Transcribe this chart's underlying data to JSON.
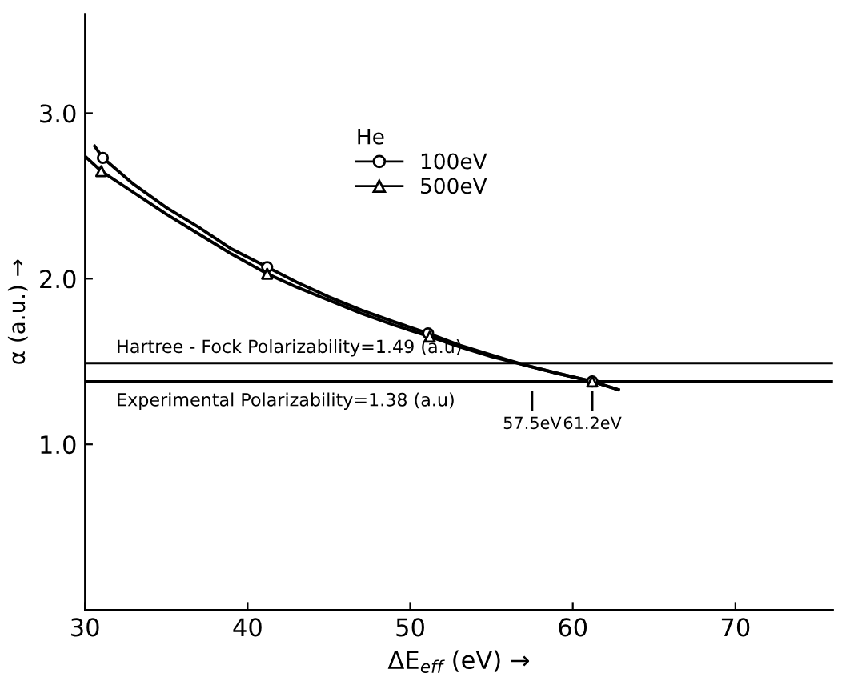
{
  "chart_data": {
    "type": "line",
    "xlabel": "ΔE$_{eff}$ (eV) →",
    "ylabel": "α (a.u.) →",
    "legend_title": "He",
    "xlim": [
      30,
      76
    ],
    "ylim": [
      0,
      3.6
    ],
    "xticks": [
      30,
      40,
      50,
      60,
      70
    ],
    "yticks": [
      {
        "value": 1,
        "label": "1.0"
      },
      {
        "value": 2,
        "label": "2.0"
      },
      {
        "value": 3,
        "label": "3.0"
      }
    ],
    "grid": false,
    "legend": "top",
    "series": [
      {
        "type": "line",
        "marker": "none",
        "color": "#000000",
        "x": [
          30.6,
          31.1,
          33,
          35,
          37,
          39,
          41.2,
          43,
          45,
          47,
          49,
          51.1,
          53,
          55,
          57,
          59,
          61.2,
          62.8
        ],
        "values": [
          2.8,
          2.73,
          2.57,
          2.43,
          2.31,
          2.18,
          2.07,
          1.98,
          1.89,
          1.81,
          1.74,
          1.67,
          1.6,
          1.54,
          1.48,
          1.43,
          1.38,
          1.33
        ]
      },
      {
        "marker": "none",
        "color": "#000000",
        "x": [
          30,
          31,
          33,
          35,
          37,
          39,
          41.2,
          43,
          45,
          47,
          49,
          51.2,
          53,
          55,
          57,
          59,
          61.2,
          62.8
        ],
        "values": [
          2.74,
          2.65,
          2.52,
          2.39,
          2.27,
          2.15,
          2.03,
          1.95,
          1.87,
          1.79,
          1.72,
          1.65,
          1.59,
          1.53,
          1.48,
          1.43,
          1.38,
          1.33
        ]
      },
      {
        "type": "scatter",
        "name": "100eV",
        "marker": "circle",
        "color": "#000000",
        "x": [
          31.1,
          41.2,
          51.1,
          61.2
        ],
        "values": [
          2.73,
          2.07,
          1.67,
          1.38
        ]
      },
      {
        "type": "scatter",
        "name": "500eV",
        "marker": "triangle",
        "color": "#000000",
        "x": [
          31,
          41.2,
          51.2,
          61.2
        ],
        "values": [
          2.65,
          2.03,
          1.65,
          1.38
        ]
      }
    ],
    "ref_lines": [
      {
        "axis": "y",
        "value": 1.49,
        "label": "Hartree - Fock Polarizability=1.49 (a.u)",
        "color": "#000000"
      },
      {
        "axis": "y",
        "value": 1.38,
        "label": "Experimental Polarizability=1.38 (a.u)",
        "color": "#000000"
      },
      {
        "axis": "x",
        "value": 57.5,
        "label": "57.5eV",
        "color": "#000000"
      },
      {
        "axis": "x",
        "value": 61.2,
        "label": "61.2eV",
        "color": "#000000"
      }
    ]
  }
}
